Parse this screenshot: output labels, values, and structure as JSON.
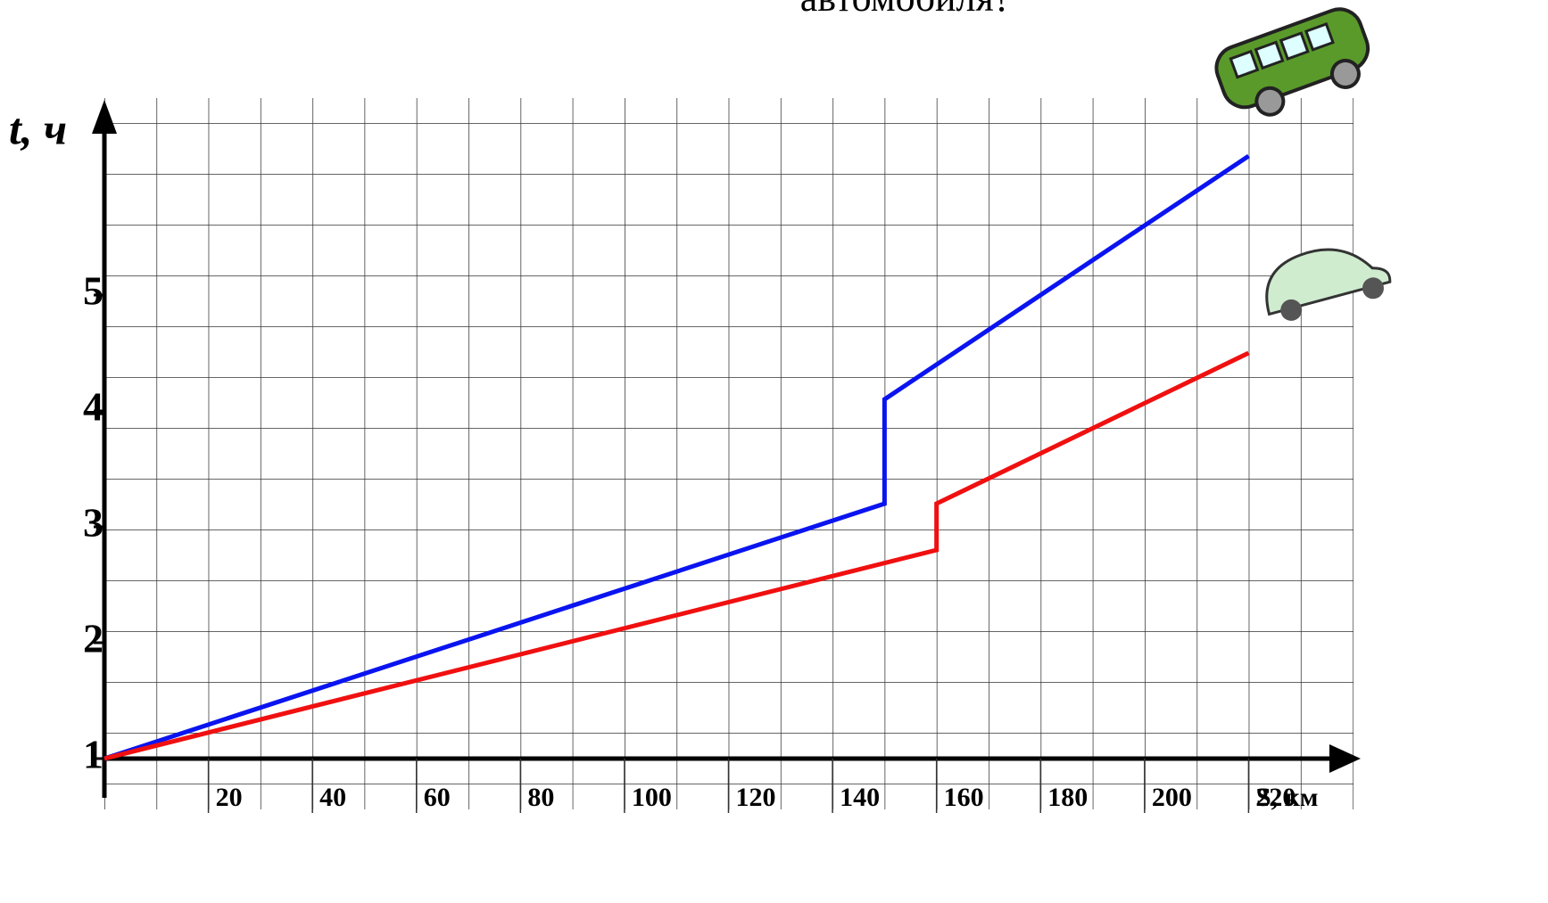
{
  "chart_data": {
    "type": "line",
    "title": "автомобиля?",
    "y_label": "t, ч",
    "x_label": "S, км",
    "xlim": [
      0,
      240
    ],
    "ylim": [
      1,
      6.7
    ],
    "xticks": [
      20,
      40,
      60,
      80,
      100,
      120,
      140,
      160,
      180,
      200,
      220
    ],
    "yticks": [
      1,
      2,
      3,
      4,
      5
    ],
    "series": [
      {
        "color": "#0a14f0",
        "x": [
          0,
          150,
          150,
          220
        ],
        "values": [
          1,
          3.2,
          4.1,
          6.2
        ]
      },
      {
        "color": "#f01010",
        "x": [
          0,
          160,
          160,
          220
        ],
        "values": [
          1,
          2.8,
          3.2,
          4.5
        ]
      }
    ]
  }
}
